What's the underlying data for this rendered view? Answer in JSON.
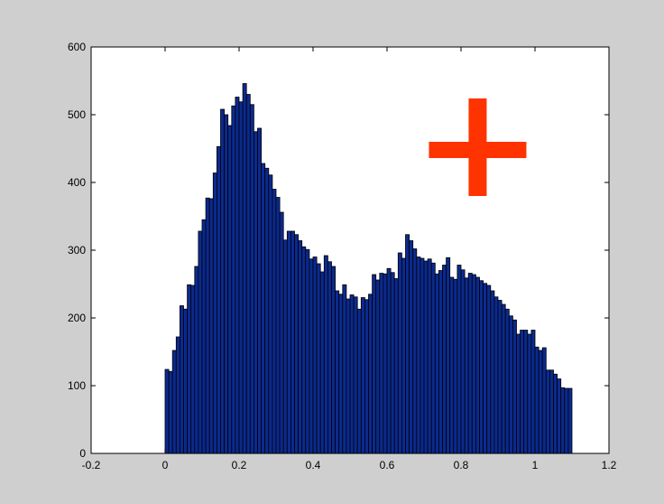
{
  "chart_data": {
    "type": "bar",
    "title": "",
    "xlabel": "",
    "ylabel": "",
    "xlim": [
      -0.2,
      1.2
    ],
    "ylim": [
      0,
      600
    ],
    "xticks": [
      -0.2,
      0,
      0.2,
      0.4,
      0.6,
      0.8,
      1,
      1.2
    ],
    "xtick_labels": [
      "-0.2",
      "0",
      "0.2",
      "0.4",
      "0.6",
      "0.8",
      "1",
      "1.2"
    ],
    "yticks": [
      0,
      100,
      200,
      300,
      400,
      500,
      600
    ],
    "ytick_labels": [
      "0",
      "100",
      "200",
      "300",
      "400",
      "500",
      "600"
    ],
    "grid": false,
    "bar_color": "#0b2a8f",
    "edge_color": "#000000",
    "bin_start": 0,
    "bin_width": 0.01,
    "values": [
      124,
      121,
      152,
      172,
      218,
      213,
      249,
      248,
      276,
      328,
      345,
      377,
      376,
      414,
      453,
      508,
      500,
      484,
      513,
      526,
      519,
      546,
      530,
      515,
      475,
      480,
      428,
      421,
      411,
      390,
      378,
      356,
      315,
      328,
      328,
      323,
      314,
      305,
      301,
      287,
      290,
      280,
      268,
      292,
      283,
      276,
      240,
      235,
      249,
      228,
      234,
      231,
      213,
      230,
      227,
      235,
      264,
      256,
      266,
      265,
      273,
      267,
      258,
      296,
      288,
      323,
      314,
      302,
      290,
      288,
      284,
      287,
      281,
      265,
      270,
      278,
      289,
      260,
      257,
      278,
      271,
      259,
      266,
      264,
      260,
      255,
      251,
      248,
      240,
      231,
      226,
      220,
      213,
      203,
      197,
      176,
      182,
      182,
      176,
      182,
      157,
      152,
      156,
      123,
      123,
      117,
      110,
      97,
      96,
      96
    ],
    "marker": {
      "shape": "plus",
      "color": "#ff3300",
      "x": 0.845,
      "y": 448
    }
  }
}
